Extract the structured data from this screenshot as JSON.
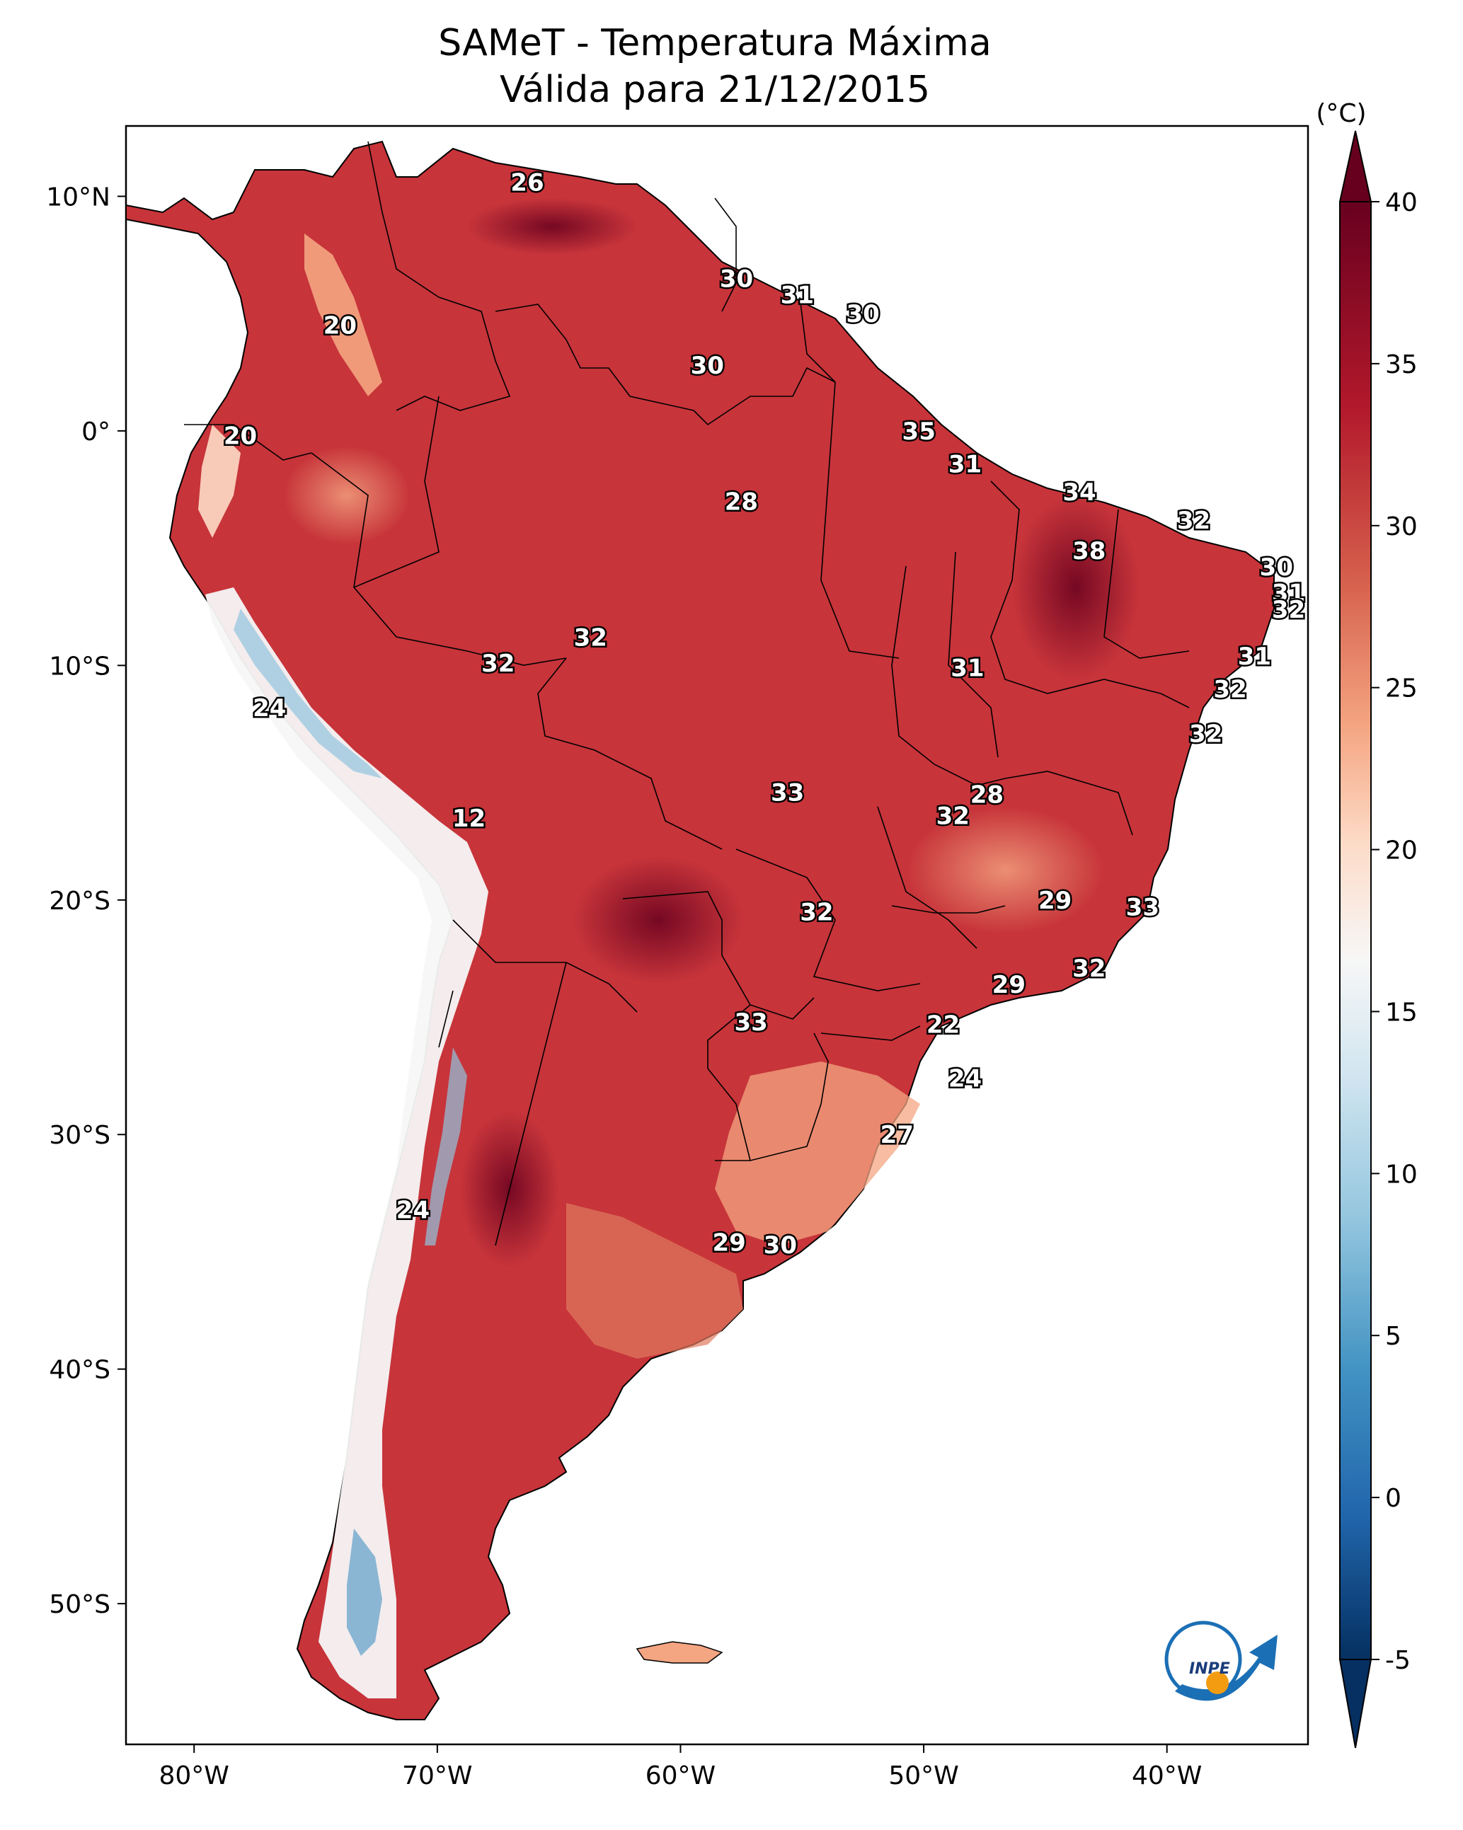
{
  "title": "SAMeT - Temperatura Máxima",
  "subtitle": "Válida para 21/12/2015",
  "colorbar": {
    "unit_label": "(°C)",
    "ticks": [
      "40",
      "35",
      "30",
      "25",
      "20",
      "15",
      "10",
      "5",
      "0",
      "-5"
    ],
    "tick_values": [
      40,
      35,
      30,
      25,
      20,
      15,
      10,
      5,
      0,
      -5
    ],
    "range": [
      -5,
      40
    ],
    "colors": [
      "#053061",
      "#2166ac",
      "#4393c3",
      "#92c5de",
      "#d1e5f0",
      "#f7f7f7",
      "#fddbc7",
      "#f4a582",
      "#d6604d",
      "#b2182b",
      "#67001f"
    ]
  },
  "axes": {
    "lon_labels": [
      "80°W",
      "70°W",
      "60°W",
      "50°W",
      "40°W"
    ],
    "lon_values": [
      -80,
      -70,
      -60,
      -50,
      -40
    ],
    "lat_labels": [
      "10°N",
      "0°",
      "10°S",
      "20°S",
      "30°S",
      "40°S",
      "50°S"
    ],
    "lat_values": [
      10,
      0,
      -10,
      -20,
      -30,
      -40,
      -50
    ],
    "lon_range": [
      -82.8,
      -34.2
    ],
    "lat_range": [
      13,
      -56
    ]
  },
  "contour_labels": [
    {
      "text": "26",
      "lon": -66.3,
      "lat": 10.6
    },
    {
      "text": "20",
      "lon": -74.0,
      "lat": 4.5
    },
    {
      "text": "30",
      "lon": -57.7,
      "lat": 6.5
    },
    {
      "text": "31",
      "lon": -55.2,
      "lat": 5.8
    },
    {
      "text": "30",
      "lon": -52.5,
      "lat": 5.0
    },
    {
      "text": "30",
      "lon": -58.9,
      "lat": 2.8
    },
    {
      "text": "20",
      "lon": -78.1,
      "lat": -0.2
    },
    {
      "text": "35",
      "lon": -50.2,
      "lat": 0.0
    },
    {
      "text": "31",
      "lon": -48.3,
      "lat": -1.4
    },
    {
      "text": "28",
      "lon": -57.5,
      "lat": -3.0
    },
    {
      "text": "34",
      "lon": -43.6,
      "lat": -2.6
    },
    {
      "text": "32",
      "lon": -38.9,
      "lat": -3.8
    },
    {
      "text": "38",
      "lon": -43.2,
      "lat": -5.1
    },
    {
      "text": "30",
      "lon": -35.5,
      "lat": -5.8
    },
    {
      "text": "31",
      "lon": -35.0,
      "lat": -6.9
    },
    {
      "text": "32",
      "lon": -35.0,
      "lat": -7.6
    },
    {
      "text": "32",
      "lon": -63.7,
      "lat": -8.8
    },
    {
      "text": "31",
      "lon": -36.4,
      "lat": -9.6
    },
    {
      "text": "32",
      "lon": -67.5,
      "lat": -9.9
    },
    {
      "text": "31",
      "lon": -48.2,
      "lat": -10.1
    },
    {
      "text": "32",
      "lon": -37.4,
      "lat": -11.0
    },
    {
      "text": "24",
      "lon": -76.9,
      "lat": -11.8
    },
    {
      "text": "32",
      "lon": -38.4,
      "lat": -12.9
    },
    {
      "text": "33",
      "lon": -55.6,
      "lat": -15.4
    },
    {
      "text": "28",
      "lon": -47.4,
      "lat": -15.5
    },
    {
      "text": "32",
      "lon": -48.8,
      "lat": -16.4
    },
    {
      "text": "12",
      "lon": -68.7,
      "lat": -16.5
    },
    {
      "text": "29",
      "lon": -44.6,
      "lat": -20.0
    },
    {
      "text": "33",
      "lon": -41.0,
      "lat": -20.3
    },
    {
      "text": "32",
      "lon": -54.4,
      "lat": -20.5
    },
    {
      "text": "32",
      "lon": -43.2,
      "lat": -22.9
    },
    {
      "text": "29",
      "lon": -46.5,
      "lat": -23.6
    },
    {
      "text": "33",
      "lon": -57.1,
      "lat": -25.2
    },
    {
      "text": "22",
      "lon": -49.2,
      "lat": -25.3
    },
    {
      "text": "24",
      "lon": -48.3,
      "lat": -27.6
    },
    {
      "text": "27",
      "lon": -51.1,
      "lat": -30.0
    },
    {
      "text": "24",
      "lon": -71.0,
      "lat": -33.2
    },
    {
      "text": "29",
      "lon": -58.0,
      "lat": -34.6
    },
    {
      "text": "30",
      "lon": -55.9,
      "lat": -34.7
    }
  ],
  "logo": {
    "text": "INPE"
  }
}
